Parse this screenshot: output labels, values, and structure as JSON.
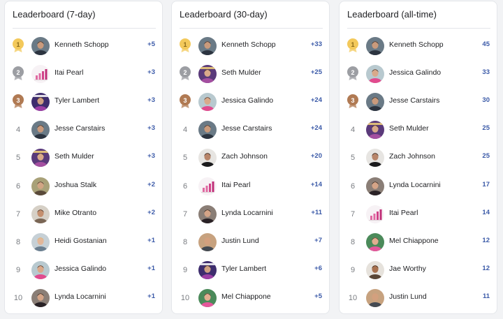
{
  "colors": {
    "score": "#3b5aa8",
    "gold_medal": "#f3c95b",
    "silver_medal": "#9c9ea3",
    "bronze_medal": "#b07a53",
    "card_background": "#ffffff",
    "page_background": "#f2f3f5"
  },
  "boards": [
    {
      "title": "Leaderboard (7-day)",
      "entries": [
        {
          "rank": "1",
          "name": "Kenneth Schopp",
          "score": "+5",
          "avatar": "man-dark-suit-photo"
        },
        {
          "rank": "2",
          "name": "Itai Pearl",
          "score": "+3",
          "avatar": "pink-bar-chart-graphic"
        },
        {
          "rank": "3",
          "name": "Tyler Lambert",
          "score": "+3",
          "avatar": "purple-promo-photo"
        },
        {
          "rank": "4",
          "name": "Jesse Carstairs",
          "score": "+3",
          "avatar": "man-dark-suit-photo"
        },
        {
          "rank": "5",
          "name": "Seth Mulder",
          "score": "+3",
          "avatar": "forever-promo-graphic"
        },
        {
          "rank": "6",
          "name": "Joshua Stalk",
          "score": "+2",
          "avatar": "man-outdoor-photo"
        },
        {
          "rank": "7",
          "name": "Mike Otranto",
          "score": "+2",
          "avatar": "man-casual-photo"
        },
        {
          "rank": "8",
          "name": "Heidi Gostanian",
          "score": "+1",
          "avatar": "woman-blonde-photo"
        },
        {
          "rank": "9",
          "name": "Jessica Galindo",
          "score": "+1",
          "avatar": "woman-pink-dress-photo"
        },
        {
          "rank": "10",
          "name": "Lynda Locarnini",
          "score": "+1",
          "avatar": "woman-dark-hair-photo"
        }
      ]
    },
    {
      "title": "Leaderboard (30-day)",
      "entries": [
        {
          "rank": "1",
          "name": "Kenneth Schopp",
          "score": "+33",
          "avatar": "man-dark-suit-photo"
        },
        {
          "rank": "2",
          "name": "Seth Mulder",
          "score": "+25",
          "avatar": "forever-promo-graphic"
        },
        {
          "rank": "3",
          "name": "Jessica Galindo",
          "score": "+24",
          "avatar": "woman-pink-dress-photo"
        },
        {
          "rank": "4",
          "name": "Jesse Carstairs",
          "score": "+24",
          "avatar": "man-dark-suit-photo"
        },
        {
          "rank": "5",
          "name": "Zach Johnson",
          "score": "+20",
          "avatar": "man-black-shirt-photo"
        },
        {
          "rank": "6",
          "name": "Itai Pearl",
          "score": "+14",
          "avatar": "pink-bar-chart-graphic"
        },
        {
          "rank": "7",
          "name": "Lynda Locarnini",
          "score": "+11",
          "avatar": "woman-dark-hair-photo"
        },
        {
          "rank": "8",
          "name": "Justin Lund",
          "score": "+7",
          "avatar": "man-bald-photo"
        },
        {
          "rank": "9",
          "name": "Tyler Lambert",
          "score": "+6",
          "avatar": "purple-promo-photo"
        },
        {
          "rank": "10",
          "name": "Mel Chiappone",
          "score": "+5",
          "avatar": "woman-pink-top-photo"
        }
      ]
    },
    {
      "title": "Leaderboard (all-time)",
      "entries": [
        {
          "rank": "1",
          "name": "Kenneth Schopp",
          "score": "45",
          "avatar": "man-dark-suit-photo"
        },
        {
          "rank": "2",
          "name": "Jessica Galindo",
          "score": "33",
          "avatar": "woman-pink-dress-photo"
        },
        {
          "rank": "3",
          "name": "Jesse Carstairs",
          "score": "30",
          "avatar": "man-dark-suit-photo"
        },
        {
          "rank": "4",
          "name": "Seth Mulder",
          "score": "25",
          "avatar": "forever-promo-graphic"
        },
        {
          "rank": "5",
          "name": "Zach Johnson",
          "score": "25",
          "avatar": "man-black-shirt-photo"
        },
        {
          "rank": "6",
          "name": "Lynda Locarnini",
          "score": "17",
          "avatar": "woman-dark-hair-photo"
        },
        {
          "rank": "7",
          "name": "Itai Pearl",
          "score": "14",
          "avatar": "pink-bar-chart-graphic"
        },
        {
          "rank": "8",
          "name": "Mel Chiappone",
          "score": "12",
          "avatar": "woman-pink-top-photo"
        },
        {
          "rank": "9",
          "name": "Jae Worthy",
          "score": "12",
          "avatar": "woman-curly-hair-photo"
        },
        {
          "rank": "10",
          "name": "Justin Lund",
          "score": "11",
          "avatar": "man-bald-photo"
        }
      ]
    }
  ]
}
